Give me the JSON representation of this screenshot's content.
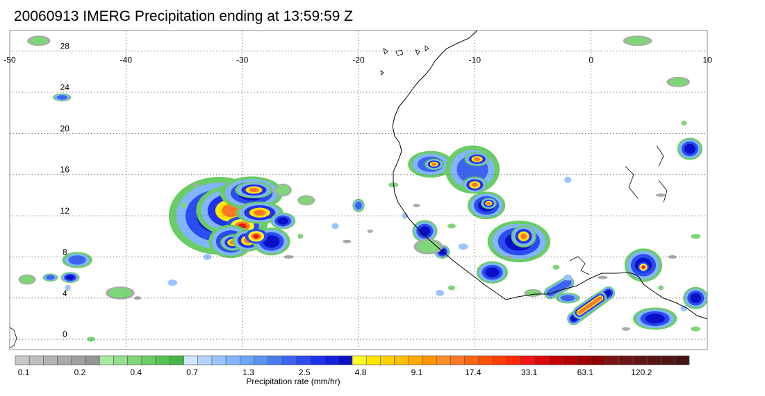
{
  "title": "20060913 IMERG Precipitation ending at 13:59:59 Z",
  "map": {
    "lon_range": [
      -50,
      10
    ],
    "lat_range": [
      -1,
      30
    ],
    "lon_ticks": [
      -50,
      -40,
      -30,
      -20,
      -10,
      0,
      10
    ],
    "lat_ticks": [
      0,
      4,
      8,
      12,
      16,
      20,
      24,
      28
    ],
    "lon_tick_labels": [
      "-50",
      "-40",
      "-30",
      "-20",
      "-10",
      "0",
      "10"
    ],
    "lat_tick_labels": [
      "0",
      "4",
      "8",
      "12",
      "16",
      "20",
      "24",
      "28"
    ],
    "gridlines": "dotted",
    "coastline_color": "#000000"
  },
  "colorbar": {
    "label": "Precipitation rate (mm/hr)",
    "tick_labels": [
      "0.1",
      "0.2",
      "0.4",
      "0.7",
      "1.3",
      "2.5",
      "4.8",
      "9.1",
      "17.4",
      "33.1",
      "63.1",
      "120.2"
    ],
    "colors": [
      "#c8c8c8",
      "#bebebe",
      "#b4b4b4",
      "#aaaaaa",
      "#a0a0a0",
      "#969696",
      "#a6eaa0",
      "#92e08c",
      "#7ed678",
      "#6acc64",
      "#56c250",
      "#46b446",
      "#d2e6ff",
      "#b4d2ff",
      "#9ac4ff",
      "#82b4ff",
      "#6aa6fa",
      "#5a96f0",
      "#4a7cf0",
      "#3c64f0",
      "#2a4cf0",
      "#1e32ee",
      "#1420dc",
      "#0a10c8",
      "#ffff28",
      "#ffe600",
      "#ffd200",
      "#ffbe00",
      "#ffaa00",
      "#ff9600",
      "#ff8c28",
      "#ff7828",
      "#ff6414",
      "#ff5000",
      "#ff3c00",
      "#ff2800",
      "#f01414",
      "#dc0a0a",
      "#c80000",
      "#b40000",
      "#a00000",
      "#8c0000",
      "#7a1414",
      "#6e1414",
      "#641414",
      "#5a1414",
      "#501414",
      "#461414"
    ]
  },
  "precip_cells": [
    {
      "lon": -32.0,
      "lat": 12.0,
      "rx": 3.2,
      "ry": 2.8,
      "level": 3
    },
    {
      "lon": -31.0,
      "lat": 12.5,
      "rx": 2.2,
      "ry": 1.8,
      "level": 4
    },
    {
      "lon": -30.0,
      "lat": 11.0,
      "rx": 1.2,
      "ry": 0.8,
      "level": 5
    },
    {
      "lon": -29.2,
      "lat": 14.2,
      "rx": 2.0,
      "ry": 1.2,
      "level": 3
    },
    {
      "lon": -29.0,
      "lat": 14.5,
      "rx": 1.2,
      "ry": 0.6,
      "level": 4
    },
    {
      "lon": -31.0,
      "lat": 9.5,
      "rx": 1.4,
      "ry": 1.2,
      "level": 3
    },
    {
      "lon": -30.8,
      "lat": 9.4,
      "rx": 0.8,
      "ry": 0.6,
      "level": 4
    },
    {
      "lon": -29.5,
      "lat": 9.6,
      "rx": 1.0,
      "ry": 0.8,
      "level": 4
    },
    {
      "lon": -28.5,
      "lat": 12.3,
      "rx": 1.5,
      "ry": 0.8,
      "level": 4
    },
    {
      "lon": -27.5,
      "lat": 9.5,
      "rx": 1.2,
      "ry": 1.0,
      "level": 3
    },
    {
      "lon": -26.5,
      "lat": 11.5,
      "rx": 0.8,
      "ry": 0.6,
      "level": 3
    },
    {
      "lon": -28.8,
      "lat": 10.0,
      "rx": 0.8,
      "ry": 0.6,
      "level": 5
    },
    {
      "lon": -44.2,
      "lat": 7.7,
      "rx": 1.0,
      "ry": 0.6,
      "level": 2
    },
    {
      "lon": -44.8,
      "lat": 6.0,
      "rx": 0.6,
      "ry": 0.4,
      "level": 3
    },
    {
      "lon": -46.5,
      "lat": 6.0,
      "rx": 0.5,
      "ry": 0.3,
      "level": 2
    },
    {
      "lon": -48.5,
      "lat": 5.8,
      "rx": 0.6,
      "ry": 0.4,
      "level": 1
    },
    {
      "lon": -45.5,
      "lat": 23.5,
      "rx": 0.6,
      "ry": 0.3,
      "level": 2
    },
    {
      "lon": -47.5,
      "lat": 29.0,
      "rx": 0.8,
      "ry": 0.4,
      "level": 1
    },
    {
      "lon": -40.5,
      "lat": 4.5,
      "rx": 1.0,
      "ry": 0.5,
      "level": 1
    },
    {
      "lon": -20.0,
      "lat": 13.0,
      "rx": 0.4,
      "ry": 0.5,
      "level": 2
    },
    {
      "lon": -13.8,
      "lat": 17.0,
      "rx": 1.5,
      "ry": 1.0,
      "level": 2
    },
    {
      "lon": -13.5,
      "lat": 17.0,
      "rx": 0.6,
      "ry": 0.4,
      "level": 4
    },
    {
      "lon": -10.2,
      "lat": 16.5,
      "rx": 1.8,
      "ry": 1.8,
      "level": 2
    },
    {
      "lon": -9.8,
      "lat": 17.5,
      "rx": 0.8,
      "ry": 0.5,
      "level": 4
    },
    {
      "lon": -10.0,
      "lat": 15.0,
      "rx": 0.8,
      "ry": 0.6,
      "level": 4
    },
    {
      "lon": -9.0,
      "lat": 13.0,
      "rx": 1.2,
      "ry": 1.0,
      "level": 3
    },
    {
      "lon": -8.8,
      "lat": 13.2,
      "rx": 0.5,
      "ry": 0.4,
      "level": 4
    },
    {
      "lon": -6.2,
      "lat": 9.5,
      "rx": 2.0,
      "ry": 1.5,
      "level": 3
    },
    {
      "lon": -5.8,
      "lat": 10.0,
      "rx": 0.8,
      "ry": 0.8,
      "level": 4
    },
    {
      "lon": -14.3,
      "lat": 10.5,
      "rx": 0.8,
      "ry": 0.8,
      "level": 3
    },
    {
      "lon": -12.8,
      "lat": 8.5,
      "rx": 0.5,
      "ry": 0.5,
      "level": 3
    },
    {
      "lon": -8.5,
      "lat": 6.5,
      "rx": 1.0,
      "ry": 0.8,
      "level": 3
    },
    {
      "lon": 4.5,
      "lat": 7.2,
      "rx": 1.2,
      "ry": 1.2,
      "level": 3
    },
    {
      "lon": 4.5,
      "lat": 7.0,
      "rx": 0.4,
      "ry": 0.4,
      "level": 5
    },
    {
      "lon": 5.5,
      "lat": 2.0,
      "rx": 1.4,
      "ry": 0.8,
      "level": 3
    },
    {
      "lon": 8.5,
      "lat": 18.5,
      "rx": 0.8,
      "ry": 0.8,
      "level": 3
    },
    {
      "lon": 9.0,
      "lat": 4.0,
      "rx": 0.8,
      "ry": 0.8,
      "level": 3
    },
    {
      "lon": 7.5,
      "lat": 25.0,
      "rx": 0.8,
      "ry": 0.4,
      "level": 1
    },
    {
      "lon": 4.0,
      "lat": 29.0,
      "rx": 1.0,
      "ry": 0.4,
      "level": 1
    },
    {
      "lon": -14.0,
      "lat": 9.0,
      "rx": 1.0,
      "ry": 0.6,
      "level": 1
    },
    {
      "lon": -5.0,
      "lat": 4.5,
      "rx": 0.6,
      "ry": 0.3,
      "level": 1
    },
    {
      "lon": -2.0,
      "lat": 4.0,
      "rx": 0.8,
      "ry": 0.4,
      "level": 2
    },
    {
      "lon": -26.5,
      "lat": 14.5,
      "rx": 0.6,
      "ry": 0.5,
      "level": 1
    },
    {
      "lon": -24.5,
      "lat": 13.5,
      "rx": 0.6,
      "ry": 0.4,
      "level": 1
    }
  ],
  "precip_bands": [
    {
      "lon1": -1.5,
      "lat1": 2.0,
      "lon2": 1.5,
      "lat2": 4.5,
      "level": 3
    },
    {
      "lon1": -1.0,
      "lat1": 2.6,
      "lon2": 0.8,
      "lat2": 4.0,
      "level": 4
    },
    {
      "lon1": -3.5,
      "lat1": 4.5,
      "lon2": -2.0,
      "lat2": 5.5,
      "level": 2
    }
  ]
}
